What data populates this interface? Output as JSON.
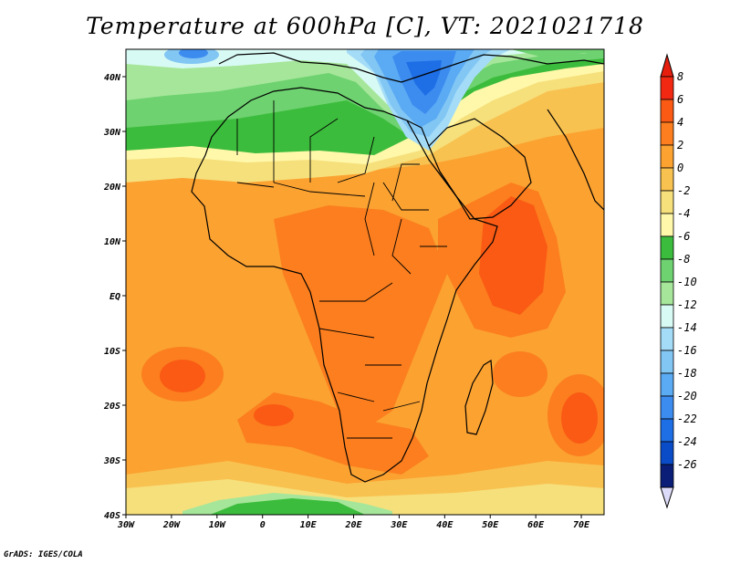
{
  "title": "Temperature at 600hPa [C], VT: 2021021718",
  "credit": "GrADS: IGES/COLA",
  "map": {
    "variable": "Temperature",
    "level": "600hPa",
    "units": "C",
    "valid_time": "2021021718",
    "lon_range": [
      -30,
      75
    ],
    "lat_range": [
      -40,
      45
    ],
    "features": [
      "country-borders",
      "coastlines",
      "filled-contours"
    ]
  },
  "axes": {
    "lon_labels": [
      "30W",
      "20W",
      "10W",
      "0",
      "10E",
      "20E",
      "30E",
      "40E",
      "50E",
      "60E",
      "70E"
    ],
    "lat_labels": [
      "40N",
      "30N",
      "20N",
      "10N",
      "EQ",
      "10S",
      "20S",
      "30S",
      "40S"
    ]
  },
  "colorbar": {
    "labels": [
      "8",
      "6",
      "4",
      "2",
      "0",
      "-2",
      "-4",
      "-6",
      "-8",
      "-10",
      "-12",
      "-14",
      "-16",
      "-18",
      "-20",
      "-22",
      "-24",
      "-26"
    ],
    "colors": [
      "#f22812",
      "#fa5a14",
      "#fc7e1e",
      "#fba231",
      "#f8c250",
      "#f6e07c",
      "#fff8aa",
      "#3cbc3c",
      "#6ed270",
      "#a6e69a",
      "#d8faf4",
      "#a4dcf8",
      "#82c6f4",
      "#5aaaf4",
      "#3c8cf0",
      "#1e6ee6",
      "#0a4cc8",
      "#0a1e78"
    ],
    "top_arrow_color": "#e61e0e",
    "bottom_arrow_color": "#dcdcfa"
  }
}
